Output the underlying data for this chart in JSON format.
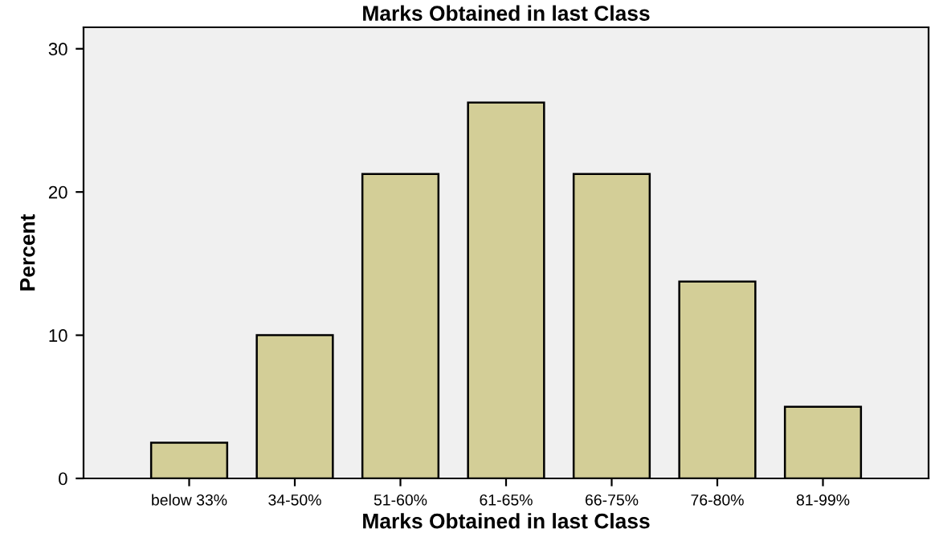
{
  "chart_data": {
    "type": "bar",
    "title": "Marks Obtained in last Class",
    "xlabel": "Marks Obtained in last Class",
    "ylabel": "Percent",
    "categories": [
      "below 33%",
      "34-50%",
      "51-60%",
      "61-65%",
      "66-75%",
      "76-80%",
      "81-99%"
    ],
    "values": [
      2.5,
      10,
      21.25,
      26.25,
      21.25,
      13.75,
      5
    ],
    "color": "#d3ce97",
    "ylim": [
      0,
      31.5
    ],
    "yticks": [
      0,
      10,
      20,
      30
    ],
    "grid": false
  }
}
